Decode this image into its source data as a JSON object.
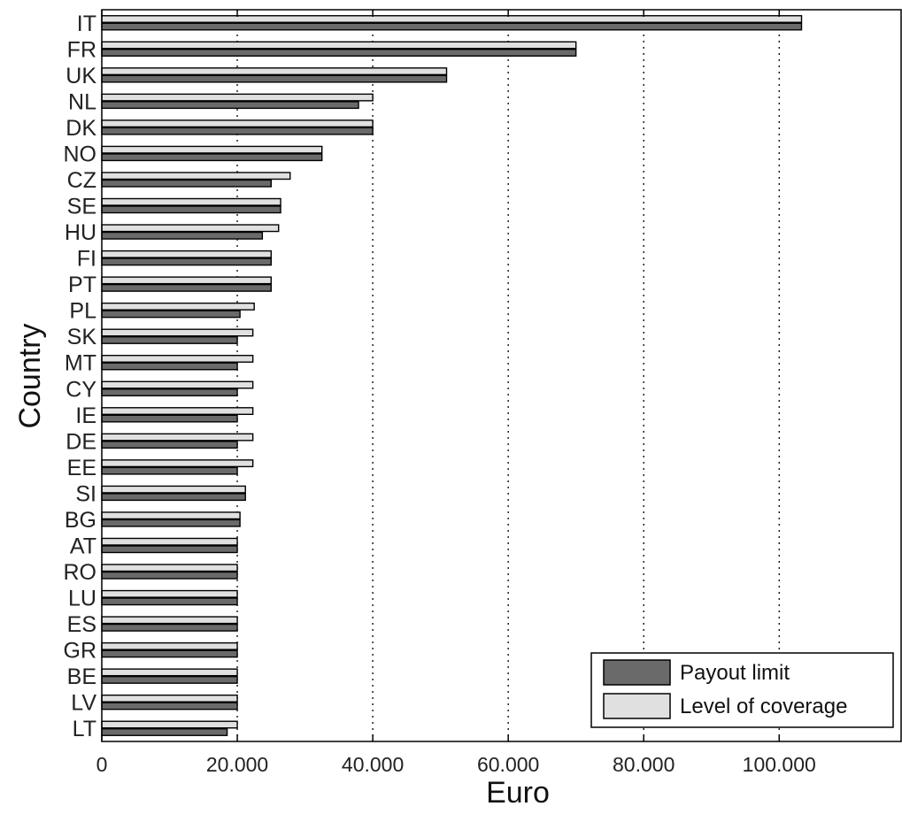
{
  "chart_data": {
    "type": "bar",
    "orientation": "horizontal",
    "xlabel": "Euro",
    "ylabel": "Country",
    "xlim": [
      0,
      118000
    ],
    "x_ticks": [
      0,
      20000,
      40000,
      60000,
      80000,
      100000
    ],
    "x_tick_labels": [
      "0",
      "20.000",
      "40.000",
      "60.000",
      "80.000",
      "100.000"
    ],
    "grid": "vertical dotted",
    "legend_position": "bottom-right",
    "categories": [
      "IT",
      "FR",
      "UK",
      "NL",
      "DK",
      "NO",
      "CZ",
      "SE",
      "HU",
      "FI",
      "PT",
      "PL",
      "SK",
      "MT",
      "CY",
      "IE",
      "DE",
      "EE",
      "SI",
      "BG",
      "AT",
      "RO",
      "LU",
      "ES",
      "GR",
      "BE",
      "LV",
      "LT"
    ],
    "series": [
      {
        "name": "Level of coverage",
        "color": "#e0e0e0",
        "values": [
          103300,
          70000,
          50900,
          40000,
          40000,
          32500,
          27800,
          26400,
          26100,
          25000,
          25000,
          22500,
          22300,
          22300,
          22300,
          22300,
          22300,
          22300,
          21200,
          20400,
          20000,
          20000,
          20000,
          20000,
          20000,
          20000,
          20000,
          20000
        ]
      },
      {
        "name": "Payout limit",
        "color": "#6a6a6a",
        "values": [
          103300,
          70000,
          50900,
          37900,
          40000,
          32500,
          25000,
          26400,
          23700,
          25000,
          25000,
          20400,
          20000,
          20000,
          20000,
          20000,
          20000,
          20000,
          21200,
          20400,
          20000,
          20000,
          20000,
          20000,
          20000,
          20000,
          20000,
          18500
        ]
      }
    ]
  }
}
